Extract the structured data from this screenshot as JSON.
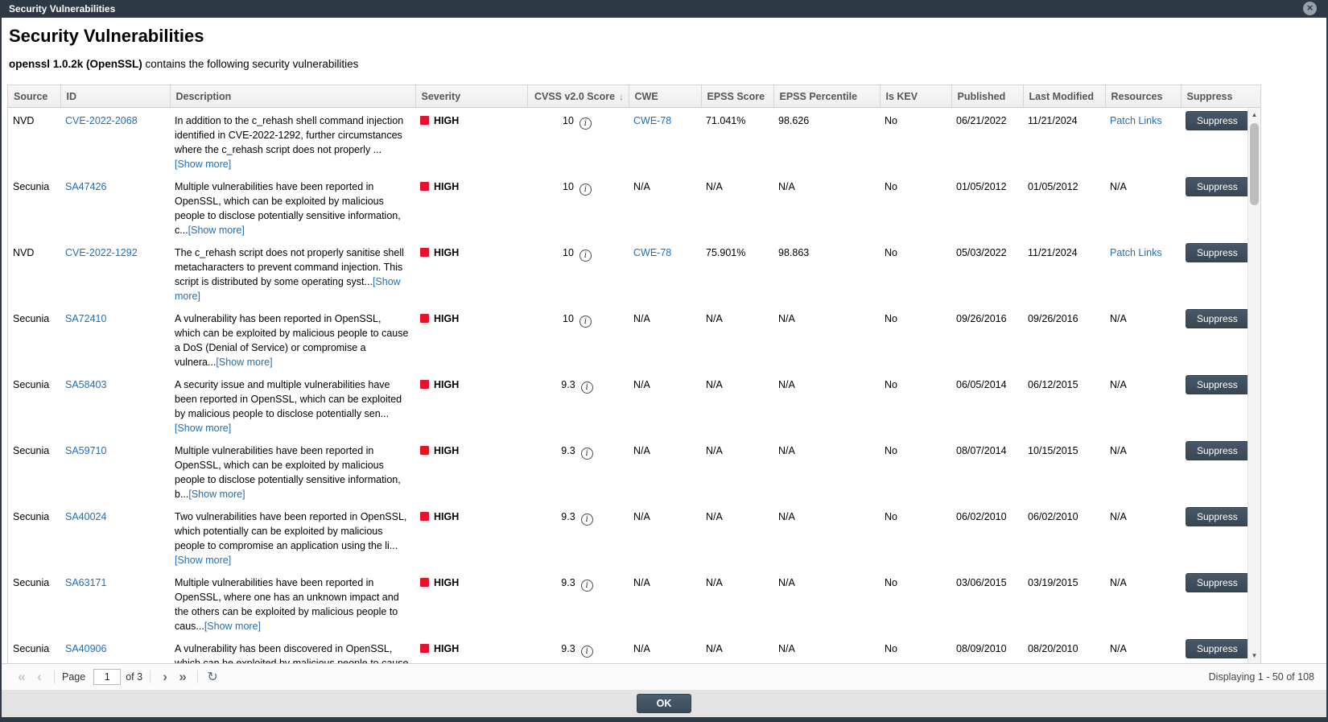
{
  "window": {
    "title": "Security Vulnerabilities"
  },
  "header": {
    "title": "Security Vulnerabilities",
    "package_bold": "openssl 1.0.2k (OpenSSL)",
    "subtitle_rest": " contains the following security vulnerabilities"
  },
  "icons": {
    "close": "×",
    "sort_desc": "↓",
    "info": "i",
    "scroll_up": "▲",
    "scroll_down": "▼",
    "first": "«",
    "prev": "‹",
    "next": "›",
    "last": "»",
    "refresh": "↻"
  },
  "colors": {
    "title_bar": "#2d3a45",
    "severity_high_red": "#e8112d",
    "link_blue": "#1e6fb8",
    "dark_button": "#3d4e5c"
  },
  "table": {
    "columns": [
      "Source",
      "ID",
      "Description",
      "Severity",
      "CVSS v2.0 Score",
      "CWE",
      "EPSS Score",
      "EPSS Percentile",
      "Is KEV",
      "Published",
      "Last Modified",
      "Resources",
      "Suppress"
    ],
    "sort": {
      "column_index": 4,
      "direction": "desc"
    },
    "show_more_label": "[Show more]",
    "suppress_label": "Suppress",
    "rows": [
      {
        "source": "NVD",
        "id": "CVE-2022-2068",
        "description": "In addition to the c_rehash shell command injection identified in CVE-2022-1292, further circumstances where the c_rehash script does not properly ...",
        "severity": "HIGH",
        "cvss": "10",
        "cwe": "CWE-78",
        "cwe_is_link": true,
        "epss_score": "71.041%",
        "epss_percentile": "98.626",
        "is_kev": "No",
        "published": "06/21/2022",
        "last_modified": "11/21/2024",
        "resources": "Patch Links",
        "resources_is_link": true
      },
      {
        "source": "Secunia",
        "id": "SA47426",
        "description": "Multiple vulnerabilities have been reported in OpenSSL, which can be exploited by malicious people to disclose potentially sensitive information, c...",
        "severity": "HIGH",
        "cvss": "10",
        "cwe": "N/A",
        "cwe_is_link": false,
        "epss_score": "N/A",
        "epss_percentile": "N/A",
        "is_kev": "No",
        "published": "01/05/2012",
        "last_modified": "01/05/2012",
        "resources": "N/A",
        "resources_is_link": false
      },
      {
        "source": "NVD",
        "id": "CVE-2022-1292",
        "description": "The c_rehash script does not properly sanitise shell metacharacters to prevent command injection. This script is distributed by some operating syst...",
        "severity": "HIGH",
        "cvss": "10",
        "cwe": "CWE-78",
        "cwe_is_link": true,
        "epss_score": "75.901%",
        "epss_percentile": "98.863",
        "is_kev": "No",
        "published": "05/03/2022",
        "last_modified": "11/21/2024",
        "resources": "Patch Links",
        "resources_is_link": true
      },
      {
        "source": "Secunia",
        "id": "SA72410",
        "description": "A vulnerability has been reported in OpenSSL, which can be exploited by malicious people to cause a DoS (Denial of Service) or compromise a vulnera...",
        "severity": "HIGH",
        "cvss": "10",
        "cwe": "N/A",
        "cwe_is_link": false,
        "epss_score": "N/A",
        "epss_percentile": "N/A",
        "is_kev": "No",
        "published": "09/26/2016",
        "last_modified": "09/26/2016",
        "resources": "N/A",
        "resources_is_link": false
      },
      {
        "source": "Secunia",
        "id": "SA58403",
        "description": "A security issue and multiple vulnerabilities have been reported in OpenSSL, which can be exploited by malicious people to disclose potentially sen...",
        "severity": "HIGH",
        "cvss": "9.3",
        "cwe": "N/A",
        "cwe_is_link": false,
        "epss_score": "N/A",
        "epss_percentile": "N/A",
        "is_kev": "No",
        "published": "06/05/2014",
        "last_modified": "06/12/2015",
        "resources": "N/A",
        "resources_is_link": false
      },
      {
        "source": "Secunia",
        "id": "SA59710",
        "description": "Multiple vulnerabilities have been reported in OpenSSL, which can be exploited by malicious people to disclose potentially sensitive information, b...",
        "severity": "HIGH",
        "cvss": "9.3",
        "cwe": "N/A",
        "cwe_is_link": false,
        "epss_score": "N/A",
        "epss_percentile": "N/A",
        "is_kev": "No",
        "published": "08/07/2014",
        "last_modified": "10/15/2015",
        "resources": "N/A",
        "resources_is_link": false
      },
      {
        "source": "Secunia",
        "id": "SA40024",
        "description": "Two vulnerabilities have been reported in OpenSSL, which potentially can be exploited by malicious people to compromise an application using the li...",
        "severity": "HIGH",
        "cvss": "9.3",
        "cwe": "N/A",
        "cwe_is_link": false,
        "epss_score": "N/A",
        "epss_percentile": "N/A",
        "is_kev": "No",
        "published": "06/02/2010",
        "last_modified": "06/02/2010",
        "resources": "N/A",
        "resources_is_link": false
      },
      {
        "source": "Secunia",
        "id": "SA63171",
        "description": "Multiple vulnerabilities have been reported in OpenSSL, where one has an unknown impact and the others can be exploited by malicious people to caus...",
        "severity": "HIGH",
        "cvss": "9.3",
        "cwe": "N/A",
        "cwe_is_link": false,
        "epss_score": "N/A",
        "epss_percentile": "N/A",
        "is_kev": "No",
        "published": "03/06/2015",
        "last_modified": "03/19/2015",
        "resources": "N/A",
        "resources_is_link": false
      },
      {
        "source": "Secunia",
        "id": "SA40906",
        "description": "A vulnerability has been discovered in OpenSSL, which can be exploited by malicious people to cause a DoS (Denial of Service) and potentially compr...",
        "severity": "HIGH",
        "cvss": "9.3",
        "cwe": "N/A",
        "cwe_is_link": false,
        "epss_score": "N/A",
        "epss_percentile": "N/A",
        "is_kev": "No",
        "published": "08/09/2010",
        "last_modified": "08/20/2010",
        "resources": "N/A",
        "resources_is_link": false
      }
    ]
  },
  "pagination": {
    "page_label": "Page",
    "page_value": "1",
    "of_label": "of 3",
    "displaying": "Displaying 1 - 50 of 108"
  },
  "footer": {
    "ok_label": "OK"
  }
}
